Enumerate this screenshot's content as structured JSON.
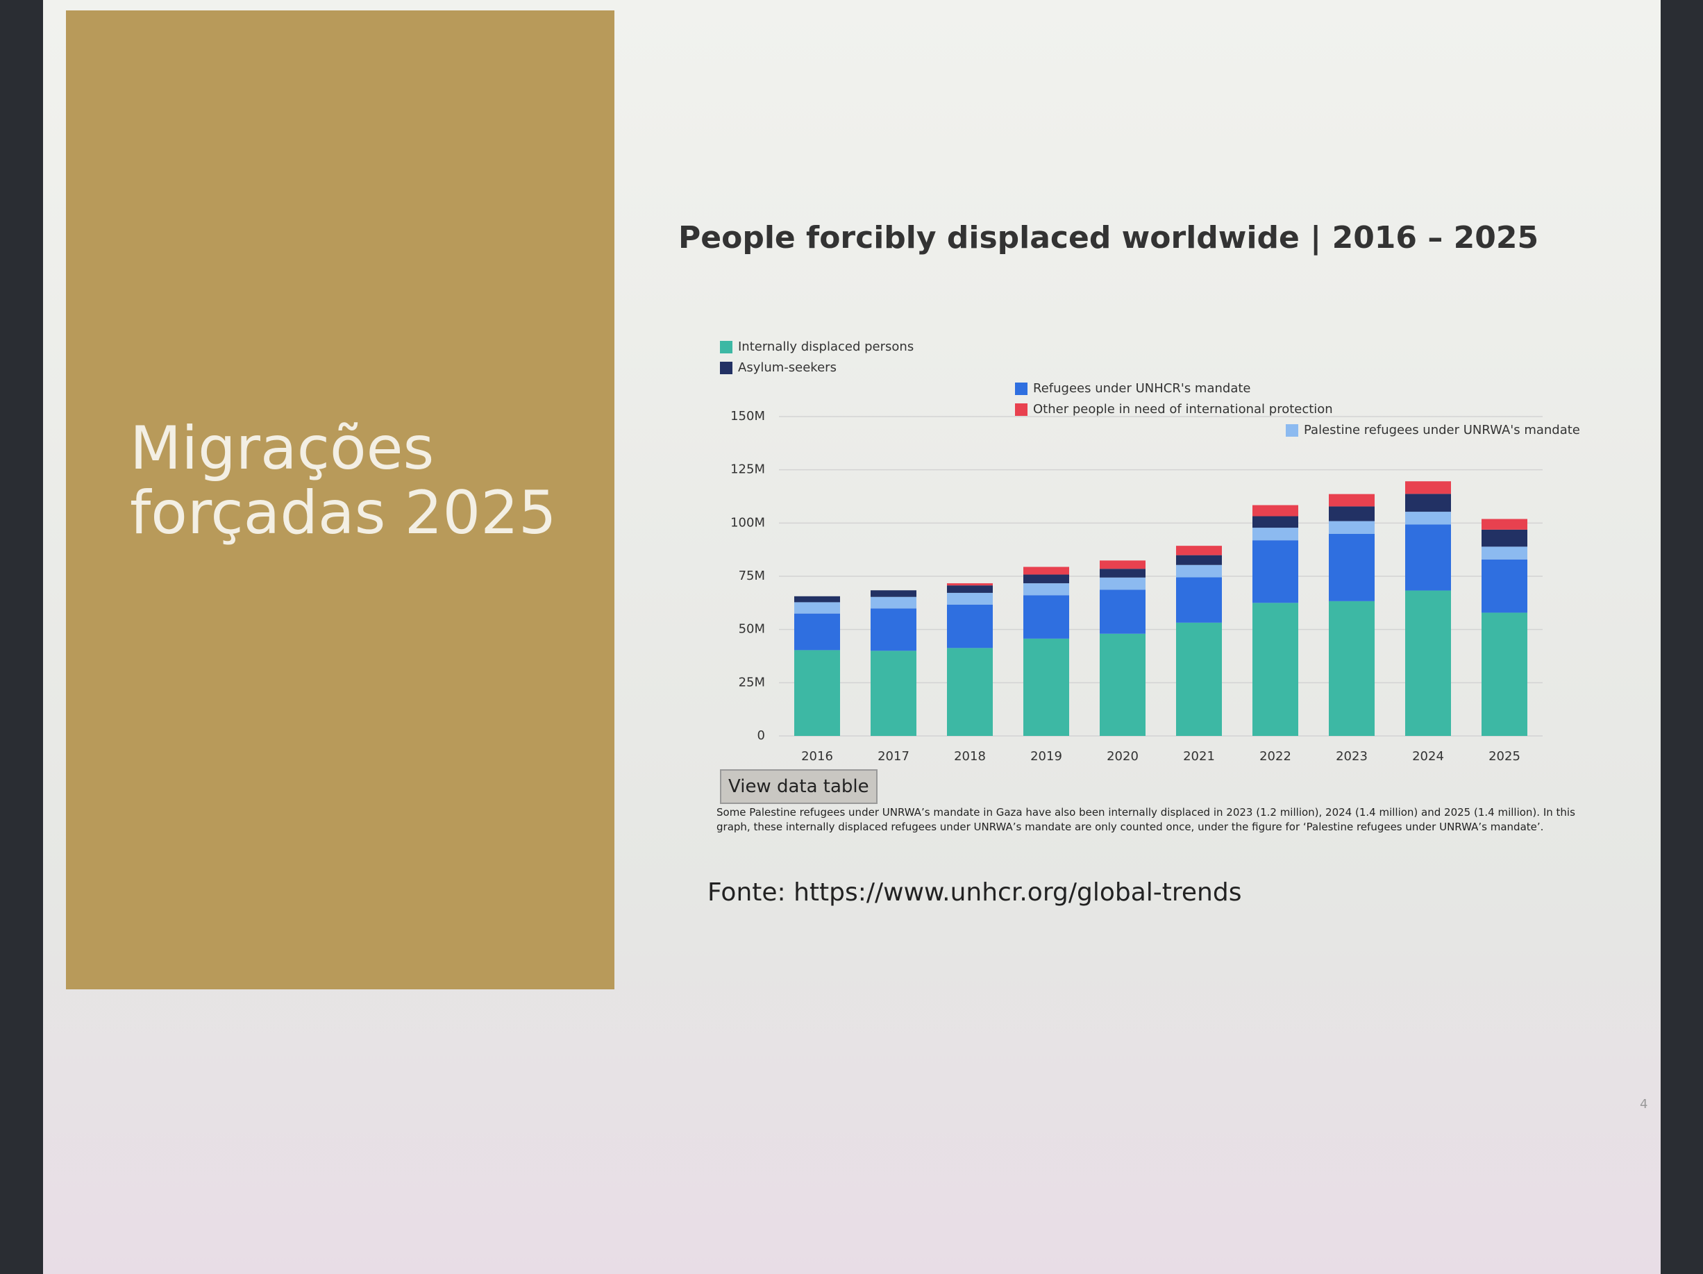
{
  "slide": {
    "title": "Migrações forçadas 2025",
    "source": "Fonte: https://www.unhcr.org/global-trends",
    "page_number": "4"
  },
  "chart_data": {
    "type": "stacked-bar",
    "title": "People forcibly displaced worldwide | 2016 – 2025",
    "button": "View data table",
    "note": "Some Palestine refugees under UNRWA’s mandate in Gaza have also been internally displaced in 2023 (1.2 million), 2024 (1.4 million) and 2025 (1.4 million). In this graph, these internally displaced refugees under UNRWA’s mandate are only counted once, under the figure for ‘Palestine refugees under UNRWA’s mandate’.",
    "categories": [
      "2016",
      "2017",
      "2018",
      "2019",
      "2020",
      "2021",
      "2022",
      "2023",
      "2024",
      "2025"
    ],
    "series": [
      {
        "name": "Internally displaced persons",
        "color": "#3db8a4",
        "values": [
          40.3,
          40.0,
          41.3,
          45.7,
          48.0,
          53.2,
          62.5,
          63.3,
          68.3,
          57.9
        ]
      },
      {
        "name": "Refugees under UNHCR's mandate",
        "color": "#2f6fe0",
        "values": [
          17.2,
          19.9,
          20.4,
          20.4,
          20.7,
          21.3,
          29.4,
          31.6,
          31.0,
          25.0
        ]
      },
      {
        "name": "Palestine refugees under UNRWA's mandate",
        "color": "#8cbaf0",
        "values": [
          5.3,
          5.4,
          5.5,
          5.6,
          5.7,
          5.8,
          5.9,
          6.0,
          6.0,
          6.0
        ]
      },
      {
        "name": "Asylum-seekers",
        "color": "#223164",
        "values": [
          2.8,
          3.1,
          3.5,
          4.1,
          4.1,
          4.6,
          5.4,
          6.9,
          8.4,
          8.0
        ]
      },
      {
        "name": "Other people in need of international protection",
        "color": "#e8414f",
        "values": [
          0,
          0,
          1.0,
          3.6,
          3.9,
          4.4,
          5.2,
          5.8,
          5.9,
          5.0
        ]
      }
    ],
    "ylim": [
      0,
      150
    ],
    "yticks": [
      0,
      {
        "value": 25,
        "label": "25M"
      },
      {
        "value": 50,
        "label": "50M"
      },
      {
        "value": 75,
        "label": "75M"
      },
      {
        "value": 100,
        "label": "100M"
      },
      {
        "value": 125,
        "label": "125M"
      },
      {
        "value": 150,
        "label": "150M"
      }
    ],
    "grid": true
  }
}
